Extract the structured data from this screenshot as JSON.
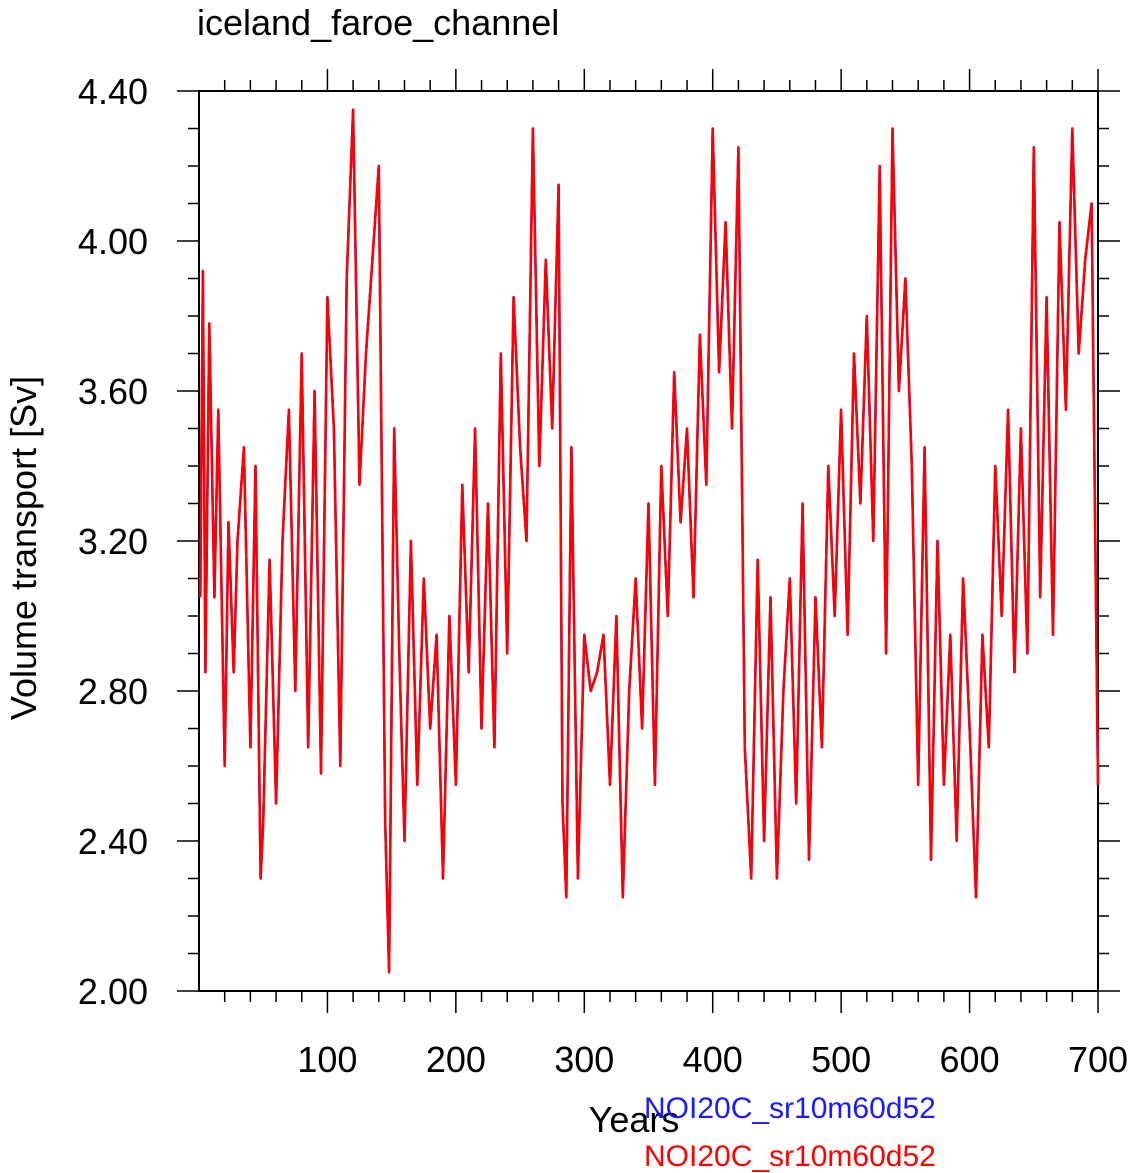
{
  "chart_data": {
    "type": "line",
    "title": "iceland_faroe_channel",
    "xlabel": "Years",
    "ylabel": "Volume transport [Sv]",
    "xlim": [
      0,
      700
    ],
    "ylim": [
      2.0,
      4.4
    ],
    "x_ticks": [
      100,
      200,
      300,
      400,
      500,
      600,
      700
    ],
    "x_tick_labels": [
      "100",
      "200",
      "300",
      "400",
      "500",
      "600",
      "700"
    ],
    "y_ticks": [
      2.0,
      2.4,
      2.8,
      3.2,
      3.6,
      4.0,
      4.4
    ],
    "y_tick_labels": [
      "2.00",
      "2.40",
      "2.80",
      "3.20",
      "3.60",
      "4.00",
      "4.40"
    ],
    "grid": false,
    "legend_position": "bottom-right, below axis",
    "series": [
      {
        "name": "NOI20C_sr10m60d52",
        "color": "#1a1aff",
        "x": [
          1,
          3,
          5,
          8,
          12,
          15,
          20,
          23,
          27,
          30,
          35,
          40,
          44,
          48,
          50,
          55,
          60,
          65,
          70,
          75,
          80,
          85,
          90,
          95,
          100,
          105,
          110,
          115,
          120,
          125,
          130,
          135,
          140,
          145,
          148,
          152,
          156,
          160,
          165,
          170,
          175,
          180,
          185,
          190,
          195,
          200,
          205,
          210,
          215,
          220,
          225,
          230,
          235,
          240,
          245,
          250,
          255,
          260,
          265,
          270,
          275,
          280,
          283,
          286,
          290,
          295,
          300,
          305,
          310,
          315,
          320,
          325,
          330,
          335,
          340,
          345,
          350,
          355,
          360,
          365,
          370,
          375,
          380,
          385,
          390,
          395,
          400,
          405,
          410,
          415,
          420,
          425,
          430,
          435,
          440,
          445,
          450,
          455,
          460,
          465,
          470,
          475,
          480,
          485,
          490,
          495,
          500,
          505,
          510,
          515,
          520,
          525,
          530,
          535,
          540,
          545,
          550,
          555,
          560,
          565,
          570,
          575,
          580,
          585,
          590,
          595,
          600,
          605,
          610,
          615,
          620,
          625,
          630,
          635,
          640,
          645,
          650,
          655,
          660,
          665,
          670,
          675,
          680,
          685,
          690,
          695,
          700
        ],
        "values": [
          3.05,
          3.92,
          2.85,
          3.78,
          3.05,
          3.55,
          2.6,
          3.25,
          2.85,
          3.2,
          3.45,
          2.65,
          3.4,
          2.3,
          2.45,
          3.15,
          2.5,
          3.2,
          3.55,
          2.8,
          3.7,
          2.65,
          3.6,
          2.58,
          3.85,
          3.5,
          2.6,
          3.9,
          4.35,
          3.35,
          3.7,
          3.95,
          4.2,
          2.45,
          2.05,
          3.5,
          2.9,
          2.4,
          3.2,
          2.55,
          3.1,
          2.7,
          2.95,
          2.3,
          3.0,
          2.55,
          3.35,
          2.85,
          3.5,
          2.7,
          3.3,
          2.65,
          3.7,
          2.9,
          3.85,
          3.45,
          3.2,
          4.3,
          3.4,
          3.95,
          3.5,
          4.15,
          2.5,
          2.25,
          3.45,
          2.3,
          2.95,
          2.8,
          2.85,
          2.95,
          2.55,
          3.0,
          2.25,
          2.8,
          3.1,
          2.7,
          3.3,
          2.55,
          3.4,
          3.0,
          3.65,
          3.25,
          3.5,
          3.05,
          3.75,
          3.35,
          4.3,
          3.65,
          4.05,
          3.5,
          4.25,
          2.65,
          2.3,
          3.15,
          2.4,
          3.05,
          2.3,
          2.8,
          3.1,
          2.5,
          3.3,
          2.35,
          3.05,
          2.65,
          3.4,
          3.0,
          3.55,
          2.95,
          3.7,
          3.3,
          3.8,
          3.2,
          4.2,
          2.9,
          4.3,
          3.6,
          3.9,
          3.4,
          2.55,
          3.45,
          2.35,
          3.2,
          2.55,
          2.95,
          2.4,
          3.1,
          2.7,
          2.25,
          2.95,
          2.65,
          3.4,
          3.0,
          3.55,
          2.85,
          3.5,
          2.9,
          4.25,
          3.05,
          3.85,
          2.95,
          4.05,
          3.55,
          4.3,
          3.7,
          3.95,
          4.1,
          2.55
        ]
      },
      {
        "name": "NOI20C_sr10m60d52",
        "color": "#ff0000",
        "x": [
          1,
          3,
          5,
          8,
          12,
          15,
          20,
          23,
          27,
          30,
          35,
          40,
          44,
          48,
          50,
          55,
          60,
          65,
          70,
          75,
          80,
          85,
          90,
          95,
          100,
          105,
          110,
          115,
          120,
          125,
          130,
          135,
          140,
          145,
          148,
          152,
          156,
          160,
          165,
          170,
          175,
          180,
          185,
          190,
          195,
          200,
          205,
          210,
          215,
          220,
          225,
          230,
          235,
          240,
          245,
          250,
          255,
          260,
          265,
          270,
          275,
          280,
          283,
          286,
          290,
          295,
          300,
          305,
          310,
          315,
          320,
          325,
          330,
          335,
          340,
          345,
          350,
          355,
          360,
          365,
          370,
          375,
          380,
          385,
          390,
          395,
          400,
          405,
          410,
          415,
          420,
          425,
          430,
          435,
          440,
          445,
          450,
          455,
          460,
          465,
          470,
          475,
          480,
          485,
          490,
          495,
          500,
          505,
          510,
          515,
          520,
          525,
          530,
          535,
          540,
          545,
          550,
          555,
          560,
          565,
          570,
          575,
          580,
          585,
          590,
          595,
          600,
          605,
          610,
          615,
          620,
          625,
          630,
          635,
          640,
          645,
          650,
          655,
          660,
          665,
          670,
          675,
          680,
          685,
          690,
          695,
          700
        ],
        "values": [
          3.05,
          3.92,
          2.85,
          3.78,
          3.05,
          3.55,
          2.6,
          3.25,
          2.85,
          3.2,
          3.45,
          2.65,
          3.4,
          2.3,
          2.45,
          3.15,
          2.5,
          3.2,
          3.55,
          2.8,
          3.7,
          2.65,
          3.6,
          2.58,
          3.85,
          3.5,
          2.6,
          3.9,
          4.35,
          3.35,
          3.7,
          3.95,
          4.2,
          2.45,
          2.05,
          3.5,
          2.9,
          2.4,
          3.2,
          2.55,
          3.1,
          2.7,
          2.95,
          2.3,
          3.0,
          2.55,
          3.35,
          2.85,
          3.5,
          2.7,
          3.3,
          2.65,
          3.7,
          2.9,
          3.85,
          3.45,
          3.2,
          4.3,
          3.4,
          3.95,
          3.5,
          4.15,
          2.5,
          2.25,
          3.45,
          2.3,
          2.95,
          2.8,
          2.85,
          2.95,
          2.55,
          3.0,
          2.25,
          2.8,
          3.1,
          2.7,
          3.3,
          2.55,
          3.4,
          3.0,
          3.65,
          3.25,
          3.5,
          3.05,
          3.75,
          3.35,
          4.3,
          3.65,
          4.05,
          3.5,
          4.25,
          2.65,
          2.3,
          3.15,
          2.4,
          3.05,
          2.3,
          2.8,
          3.1,
          2.5,
          3.3,
          2.35,
          3.05,
          2.65,
          3.4,
          3.0,
          3.55,
          2.95,
          3.7,
          3.3,
          3.8,
          3.2,
          4.2,
          2.9,
          4.3,
          3.6,
          3.9,
          3.4,
          2.55,
          3.45,
          2.35,
          3.2,
          2.55,
          2.95,
          2.4,
          3.1,
          2.7,
          2.25,
          2.95,
          2.65,
          3.4,
          3.0,
          3.55,
          2.85,
          3.5,
          2.9,
          4.25,
          3.05,
          3.85,
          2.95,
          4.05,
          3.55,
          4.3,
          3.7,
          3.95,
          4.1,
          2.55
        ]
      }
    ]
  }
}
